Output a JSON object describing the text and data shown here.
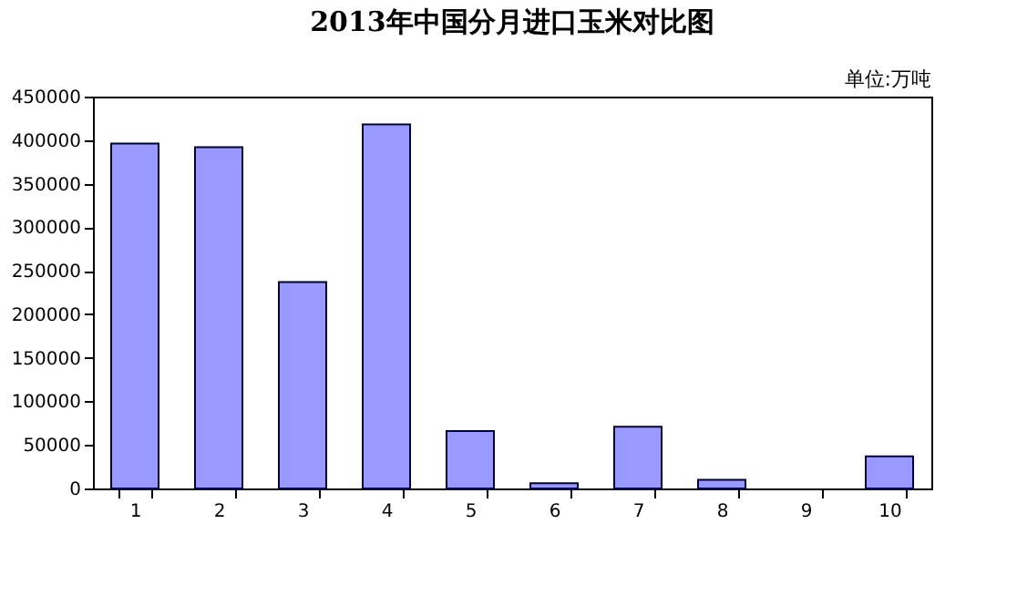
{
  "chart_data": {
    "type": "bar",
    "title": "2013年中国分月进口玉米对比图",
    "categories": [
      "1",
      "2",
      "3",
      "4",
      "5",
      "6",
      "7",
      "8",
      "9",
      "10"
    ],
    "values": [
      396000,
      392000,
      237000,
      418000,
      66000,
      6000,
      71000,
      10000,
      null,
      37000
    ],
    "color": "#9999ff",
    "ylim": [
      0,
      450000
    ],
    "yticks": [
      0,
      50000,
      100000,
      150000,
      200000,
      250000,
      300000,
      350000,
      400000,
      450000
    ],
    "grid": false,
    "annotations": [
      "单位:万吨"
    ]
  }
}
